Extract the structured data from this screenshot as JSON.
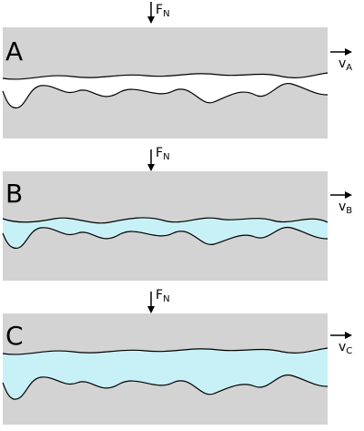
{
  "colors": {
    "solid": "#d3d3d3",
    "gap_dry": "#ffffff",
    "fluid": "#c7f1f7",
    "line": "#000000"
  },
  "panels": [
    {
      "label": "A",
      "force": {
        "main": "F",
        "sub": "N"
      },
      "velocity": {
        "main": "v",
        "sub": "A"
      },
      "gap_fill": "gap_dry"
    },
    {
      "label": "B",
      "force": {
        "main": "F",
        "sub": "N"
      },
      "velocity": {
        "main": "v",
        "sub": "B"
      },
      "gap_fill": "fluid"
    },
    {
      "label": "C",
      "force": {
        "main": "F",
        "sub": "N"
      },
      "velocity": {
        "main": "v",
        "sub": "C"
      },
      "gap_fill": "fluid"
    }
  ]
}
